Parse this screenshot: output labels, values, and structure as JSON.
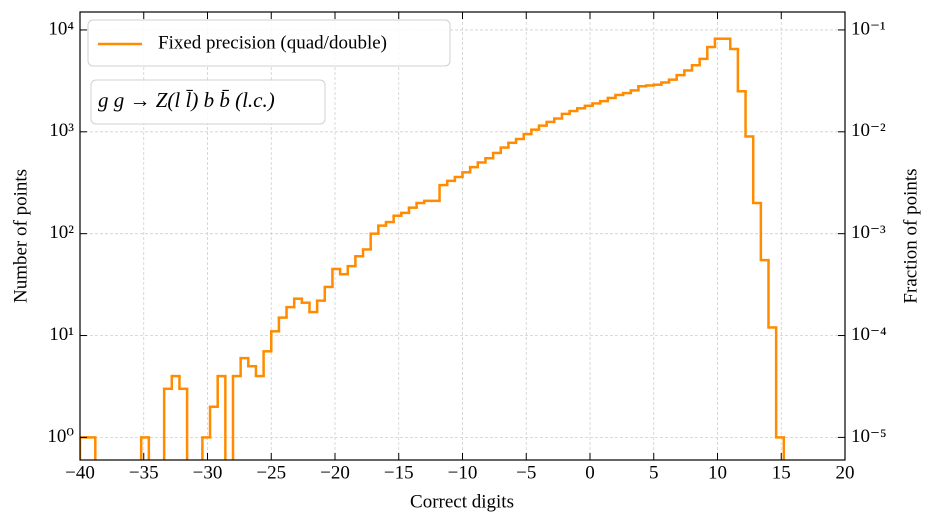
{
  "chart_data": {
    "type": "histogram",
    "xlabel": "Correct digits",
    "ylabel": "Number of points",
    "y2label": "Fraction of points",
    "annotation": "g g  →  Z(l l̄) b b̄ (l.c.)",
    "log_y": true,
    "grid": true,
    "legend": "upper left",
    "bins": [
      -40,
      -39.4,
      -38.8,
      -38.2,
      -37.6,
      -37,
      -36.4,
      -35.8,
      -35.2,
      -34.6,
      -34,
      -33.4,
      -32.8,
      -32.2,
      -31.6,
      -31,
      -30.4,
      -29.8,
      -29.2,
      -28.6,
      -28,
      -27.4,
      -26.8,
      -26.2,
      -25.6,
      -25,
      -24.4,
      -23.8,
      -23.2,
      -22.6,
      -22,
      -21.4,
      -20.8,
      -20.2,
      -19.6,
      -19,
      -18.4,
      -17.8,
      -17.2,
      -16.6,
      -16,
      -15.4,
      -14.8,
      -14.2,
      -13.6,
      -13,
      -12.4,
      -11.8,
      -11.2,
      -10.6,
      -10,
      -9.4,
      -8.8,
      -8.2,
      -7.6,
      -7,
      -6.4,
      -5.8,
      -5.2,
      -4.6,
      -4,
      -3.4,
      -2.8,
      -2.2,
      -1.6,
      -1,
      -0.4,
      0.2,
      0.8,
      1.4,
      2,
      2.6,
      3.2,
      3.8,
      4.4,
      5,
      5.6,
      6.2,
      6.8,
      7.4,
      8,
      8.6,
      9.2,
      9.8,
      10.4,
      11,
      11.6,
      12.2,
      12.8,
      13.4,
      14,
      14.6,
      15.2
    ],
    "series": [
      {
        "name": "Fixed precision (quad/double)",
        "color": "#ff8c00",
        "values": [
          1,
          1,
          0,
          0,
          0,
          0,
          0,
          0,
          1,
          0,
          0,
          3,
          4,
          3,
          0,
          0,
          1,
          2,
          4,
          0,
          4,
          6,
          5,
          4,
          7,
          11,
          15,
          19,
          23,
          21,
          17,
          22,
          30,
          45,
          40,
          48,
          60,
          70,
          100,
          120,
          130,
          150,
          160,
          180,
          200,
          210,
          210,
          300,
          330,
          360,
          400,
          450,
          500,
          550,
          620,
          700,
          780,
          850,
          950,
          1050,
          1150,
          1250,
          1350,
          1500,
          1600,
          1700,
          1800,
          1900,
          2000,
          2150,
          2300,
          2400,
          2550,
          2800,
          2850,
          2900,
          3050,
          3250,
          3600,
          4000,
          4500,
          5200,
          6800,
          8200,
          8200,
          6500,
          2500,
          900,
          200,
          55,
          12,
          1
        ]
      }
    ],
    "xlim": [
      -40,
      20
    ],
    "ylim": [
      0.6,
      15000
    ],
    "y2lim": [
      6e-06,
      0.15
    ],
    "xticks": [
      {
        "value": -40,
        "label": "−40"
      },
      {
        "value": -35,
        "label": "−35"
      },
      {
        "value": -30,
        "label": "−30"
      },
      {
        "value": -25,
        "label": "−25"
      },
      {
        "value": -20,
        "label": "−20"
      },
      {
        "value": -15,
        "label": "−15"
      },
      {
        "value": -10,
        "label": "−10"
      },
      {
        "value": -5,
        "label": "−5"
      },
      0,
      5,
      10,
      15,
      20
    ],
    "yticks": [
      {
        "value": 1,
        "label": "10⁰"
      },
      {
        "value": 10,
        "label": "10¹"
      },
      {
        "value": 100,
        "label": "10²"
      },
      {
        "value": 1000,
        "label": "10³"
      },
      {
        "value": 10000,
        "label": "10⁴"
      }
    ],
    "y2ticks": [
      {
        "value": 1e-05,
        "label": "10⁻⁵"
      },
      {
        "value": 0.0001,
        "label": "10⁻⁴"
      },
      {
        "value": 0.001,
        "label": "10⁻³"
      },
      {
        "value": 0.01,
        "label": "10⁻²"
      },
      {
        "value": 0.1,
        "label": "10⁻¹"
      }
    ]
  }
}
